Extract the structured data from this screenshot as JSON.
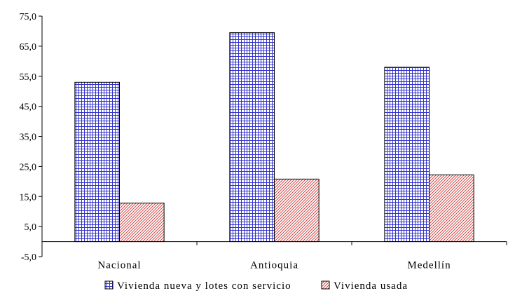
{
  "chart_data": {
    "type": "bar",
    "categories": [
      "Nacional",
      "Antioquia",
      "Medellín"
    ],
    "series": [
      {
        "name": "Vivienda nueva y lotes con servicio",
        "values": [
          53.0,
          69.5,
          58.0
        ],
        "color": "#3333cc",
        "pattern": "grid"
      },
      {
        "name": "Vivienda usada",
        "values": [
          12.8,
          20.8,
          22.2
        ],
        "color": "#cc3333",
        "pattern": "diagonal"
      }
    ],
    "ylim": [
      -5,
      75
    ],
    "yticks": [
      -5,
      5,
      15,
      25,
      35,
      45,
      55,
      65,
      75
    ],
    "ytick_labels": [
      "-5,0",
      "5,0",
      "15,0",
      "25,0",
      "35,0",
      "45,0",
      "55,0",
      "65,0",
      "75,0"
    ],
    "title": "",
    "xlabel": "",
    "ylabel": "",
    "grid": false,
    "legend_position": "bottom"
  }
}
